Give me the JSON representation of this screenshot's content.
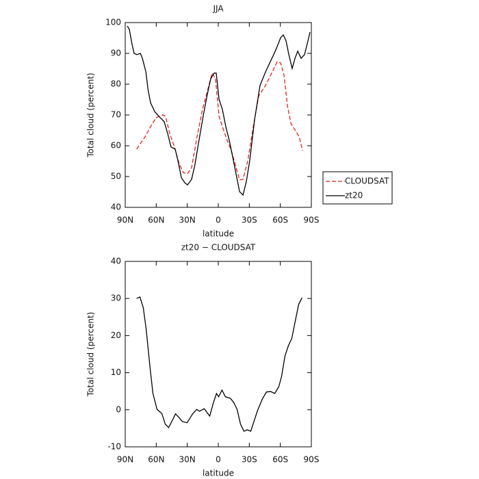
{
  "chart_data": [
    {
      "type": "line",
      "title": "JJA",
      "x_label": "latitude",
      "y_label": "Total cloud (percent)",
      "xlim": [
        90,
        -90
      ],
      "ylim": [
        40,
        100
      ],
      "xticks": [
        {
          "value": 90,
          "label": "90N"
        },
        {
          "value": 60,
          "label": "60N"
        },
        {
          "value": 30,
          "label": "30N"
        },
        0,
        {
          "value": -30,
          "label": "30S"
        },
        {
          "value": -60,
          "label": "60S"
        },
        {
          "value": -90,
          "label": "90S"
        }
      ],
      "yticks": [
        40,
        50,
        60,
        70,
        80,
        90,
        100
      ],
      "legend": "outside-right",
      "series": [
        {
          "name": "CLOUDSAT",
          "color": "#e0201c",
          "dash": true,
          "x": [
            79,
            75.4,
            70.8,
            65.5,
            60.2,
            53.6,
            51,
            47,
            42.4,
            37.7,
            33.8,
            29.8,
            25.8,
            20.5,
            15.3,
            10,
            6,
            2.7,
            -0.7,
            -4,
            -8.6,
            -12.6,
            -17.3,
            -20.6,
            -23.9,
            -28.5,
            -33.8,
            -39.1,
            -45.7,
            -52.3,
            -56.9,
            -60.3,
            -63.6,
            -66.9,
            -70.2,
            -74.9,
            -78.2,
            -81.5
          ],
          "values": [
            58.9,
            60.7,
            62.9,
            66.2,
            69.1,
            70,
            69.6,
            64,
            59.6,
            54,
            51.3,
            50.9,
            52.9,
            62.9,
            71.8,
            78.4,
            83.6,
            81.8,
            69.6,
            66.2,
            61.8,
            58.4,
            52.9,
            48.9,
            49.1,
            55.1,
            66.2,
            76.2,
            79.6,
            84,
            87.3,
            86.9,
            82.9,
            72.9,
            67.3,
            64.7,
            62.9,
            58.4
          ]
        },
        {
          "name": "zt20",
          "color": "#000000",
          "dash": false,
          "x": [
            88,
            86,
            83.4,
            81.4,
            78.7,
            75.4,
            73.4,
            70,
            68,
            65.5,
            61.5,
            57.6,
            52.3,
            49,
            45.7,
            41.7,
            39,
            35.7,
            32.4,
            29.8,
            25.8,
            22.5,
            19.2,
            14.6,
            10.6,
            7.3,
            4,
            2,
            -0.7,
            -4,
            -7.3,
            -10.6,
            -14,
            -17.3,
            -20.6,
            -23.9,
            -27.1,
            -30.4,
            -35.1,
            -40.4,
            -45.7,
            -50.3,
            -53.6,
            -56.9,
            -60.3,
            -62.9,
            -65.6,
            -68.2,
            -71.5,
            -74.2,
            -76.8,
            -80.1,
            -83.4,
            -86.7,
            -88.7
          ],
          "values": [
            98.9,
            97.8,
            92.9,
            90,
            89.6,
            90,
            88.4,
            84,
            78.4,
            74,
            71.1,
            69.6,
            67.8,
            64,
            59.6,
            58.9,
            55.1,
            49.6,
            48,
            47.3,
            49.1,
            54,
            60.7,
            69.6,
            76.7,
            81.8,
            83.6,
            83.6,
            75.1,
            71.8,
            66.2,
            61.8,
            56.2,
            50.7,
            45.1,
            44,
            48.4,
            55.1,
            68.4,
            79.6,
            84,
            87.3,
            89.6,
            92.2,
            95.1,
            96,
            94,
            89.6,
            85.1,
            88.4,
            90.7,
            88.4,
            89.6,
            94,
            96.9
          ]
        }
      ]
    },
    {
      "type": "line",
      "title": "zt20 − CLOUDSAT",
      "x_label": "latitude",
      "y_label": "Total cloud (percent)",
      "xlim": [
        90,
        -90
      ],
      "ylim": [
        -10,
        40
      ],
      "xticks": [
        {
          "value": 90,
          "label": "90N"
        },
        {
          "value": 60,
          "label": "60N"
        },
        {
          "value": 30,
          "label": "30N"
        },
        0,
        {
          "value": -30,
          "label": "30S"
        },
        {
          "value": -60,
          "label": "60S"
        },
        {
          "value": -90,
          "label": "90S"
        }
      ],
      "yticks": [
        -10,
        0,
        10,
        20,
        30,
        40
      ],
      "series": [
        {
          "color": "#000000",
          "dash": false,
          "x": [
            79,
            75.8,
            72.5,
            69.8,
            65.8,
            63.2,
            59.2,
            54.6,
            51.3,
            48,
            44.7,
            41.4,
            38,
            34.7,
            30.1,
            24.8,
            20.8,
            18.2,
            13.6,
            8.3,
            5,
            1.7,
            -0.3,
            -3.6,
            -6.9,
            -11.6,
            -14.9,
            -18.2,
            -21.5,
            -24.8,
            -28.1,
            -31.4,
            -34.7,
            -38,
            -42.6,
            -46.6,
            -50.6,
            -54.6,
            -58.5,
            -61.2,
            -64.5,
            -67.8,
            -71.1,
            -74.4,
            -77.7,
            -81
          ],
          "values": [
            30,
            30.4,
            27.5,
            21.9,
            10.8,
            4.4,
            0.1,
            -1,
            -3.9,
            -4.8,
            -3,
            -1.1,
            -2.1,
            -3.2,
            -3.5,
            -1.1,
            0.1,
            -0.4,
            0.3,
            -1.7,
            1.6,
            4.4,
            3.5,
            5.3,
            3.5,
            3.1,
            2,
            0.1,
            -3.9,
            -5.8,
            -5.4,
            -5.8,
            -3,
            -0.2,
            2.9,
            4.8,
            4.9,
            4.4,
            6.2,
            9,
            14.5,
            17.3,
            19.2,
            23.8,
            28.4,
            30.2
          ]
        }
      ]
    }
  ]
}
